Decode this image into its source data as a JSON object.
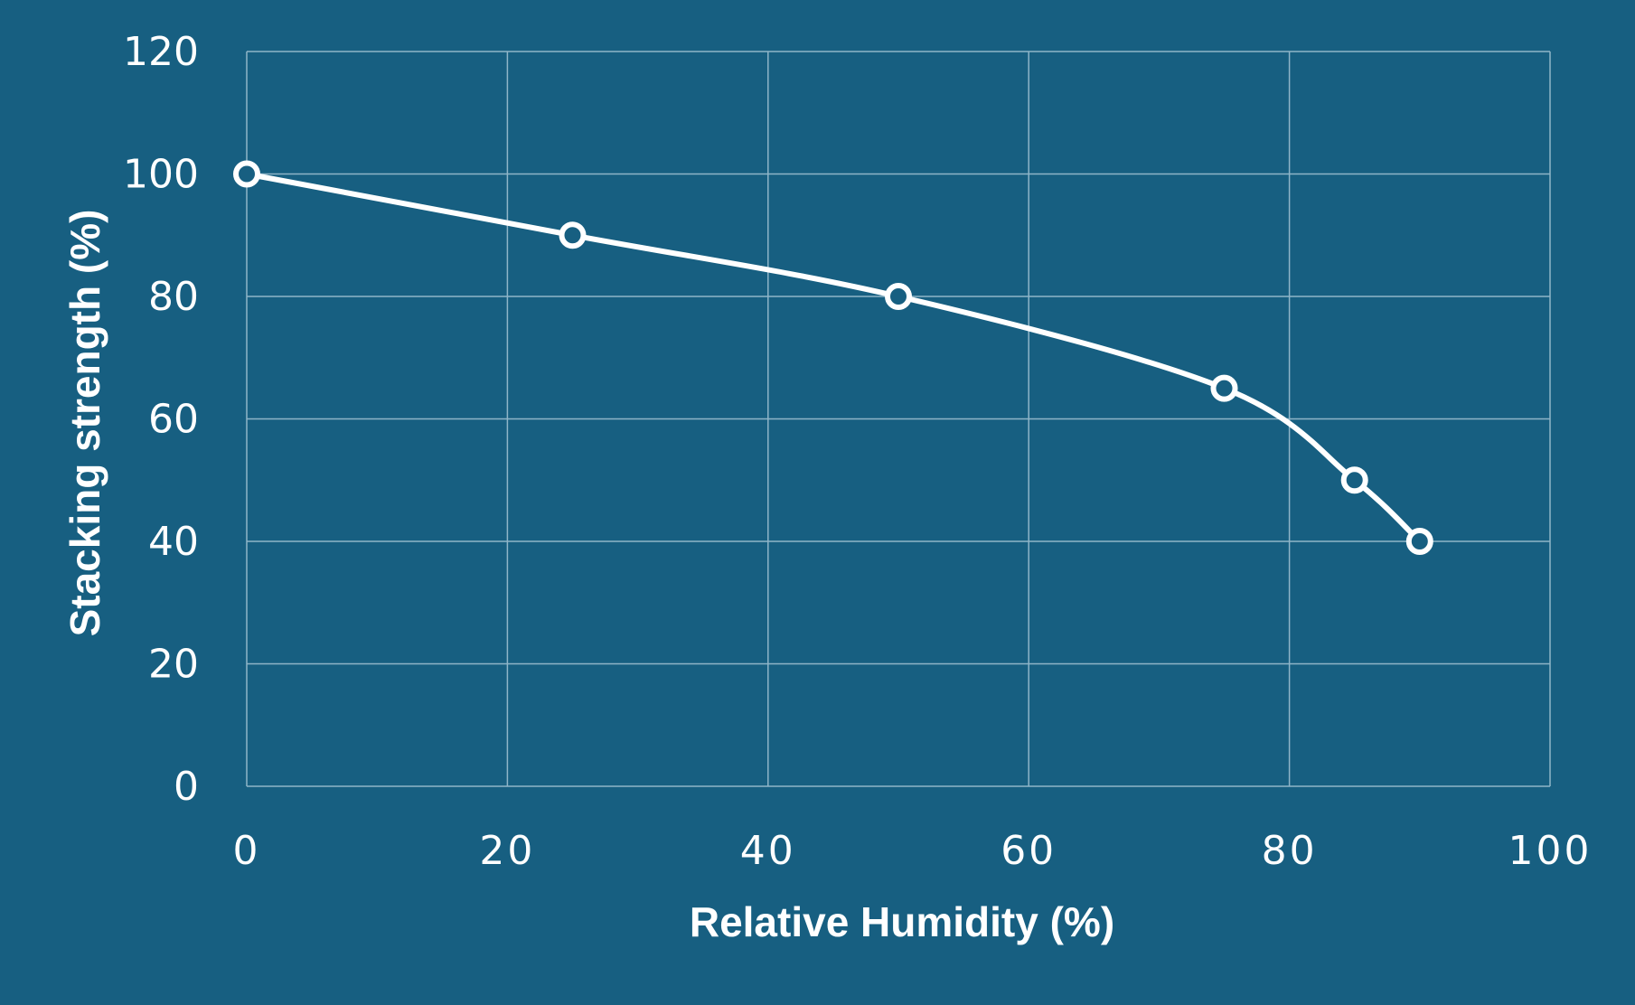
{
  "colors": {
    "background": "#175f81",
    "grid": "#8fb5c8",
    "line": "#ffffff",
    "marker_fill": "#175f81",
    "text": "#ffffff"
  },
  "chart_data": {
    "type": "line",
    "title": "",
    "xlabel": "Relative Humidity (%)",
    "ylabel": "Stacking strength (%)",
    "xlim": [
      0,
      100
    ],
    "ylim": [
      0,
      120
    ],
    "x_ticks": [
      0,
      20,
      40,
      60,
      80,
      100
    ],
    "y_ticks": [
      0,
      20,
      40,
      60,
      80,
      100,
      120
    ],
    "grid": true,
    "legend": "none",
    "smooth": true,
    "series": [
      {
        "x": [
          0,
          25,
          50,
          75,
          85,
          90
        ],
        "y": [
          100,
          90,
          80,
          65,
          50,
          40
        ]
      }
    ]
  }
}
